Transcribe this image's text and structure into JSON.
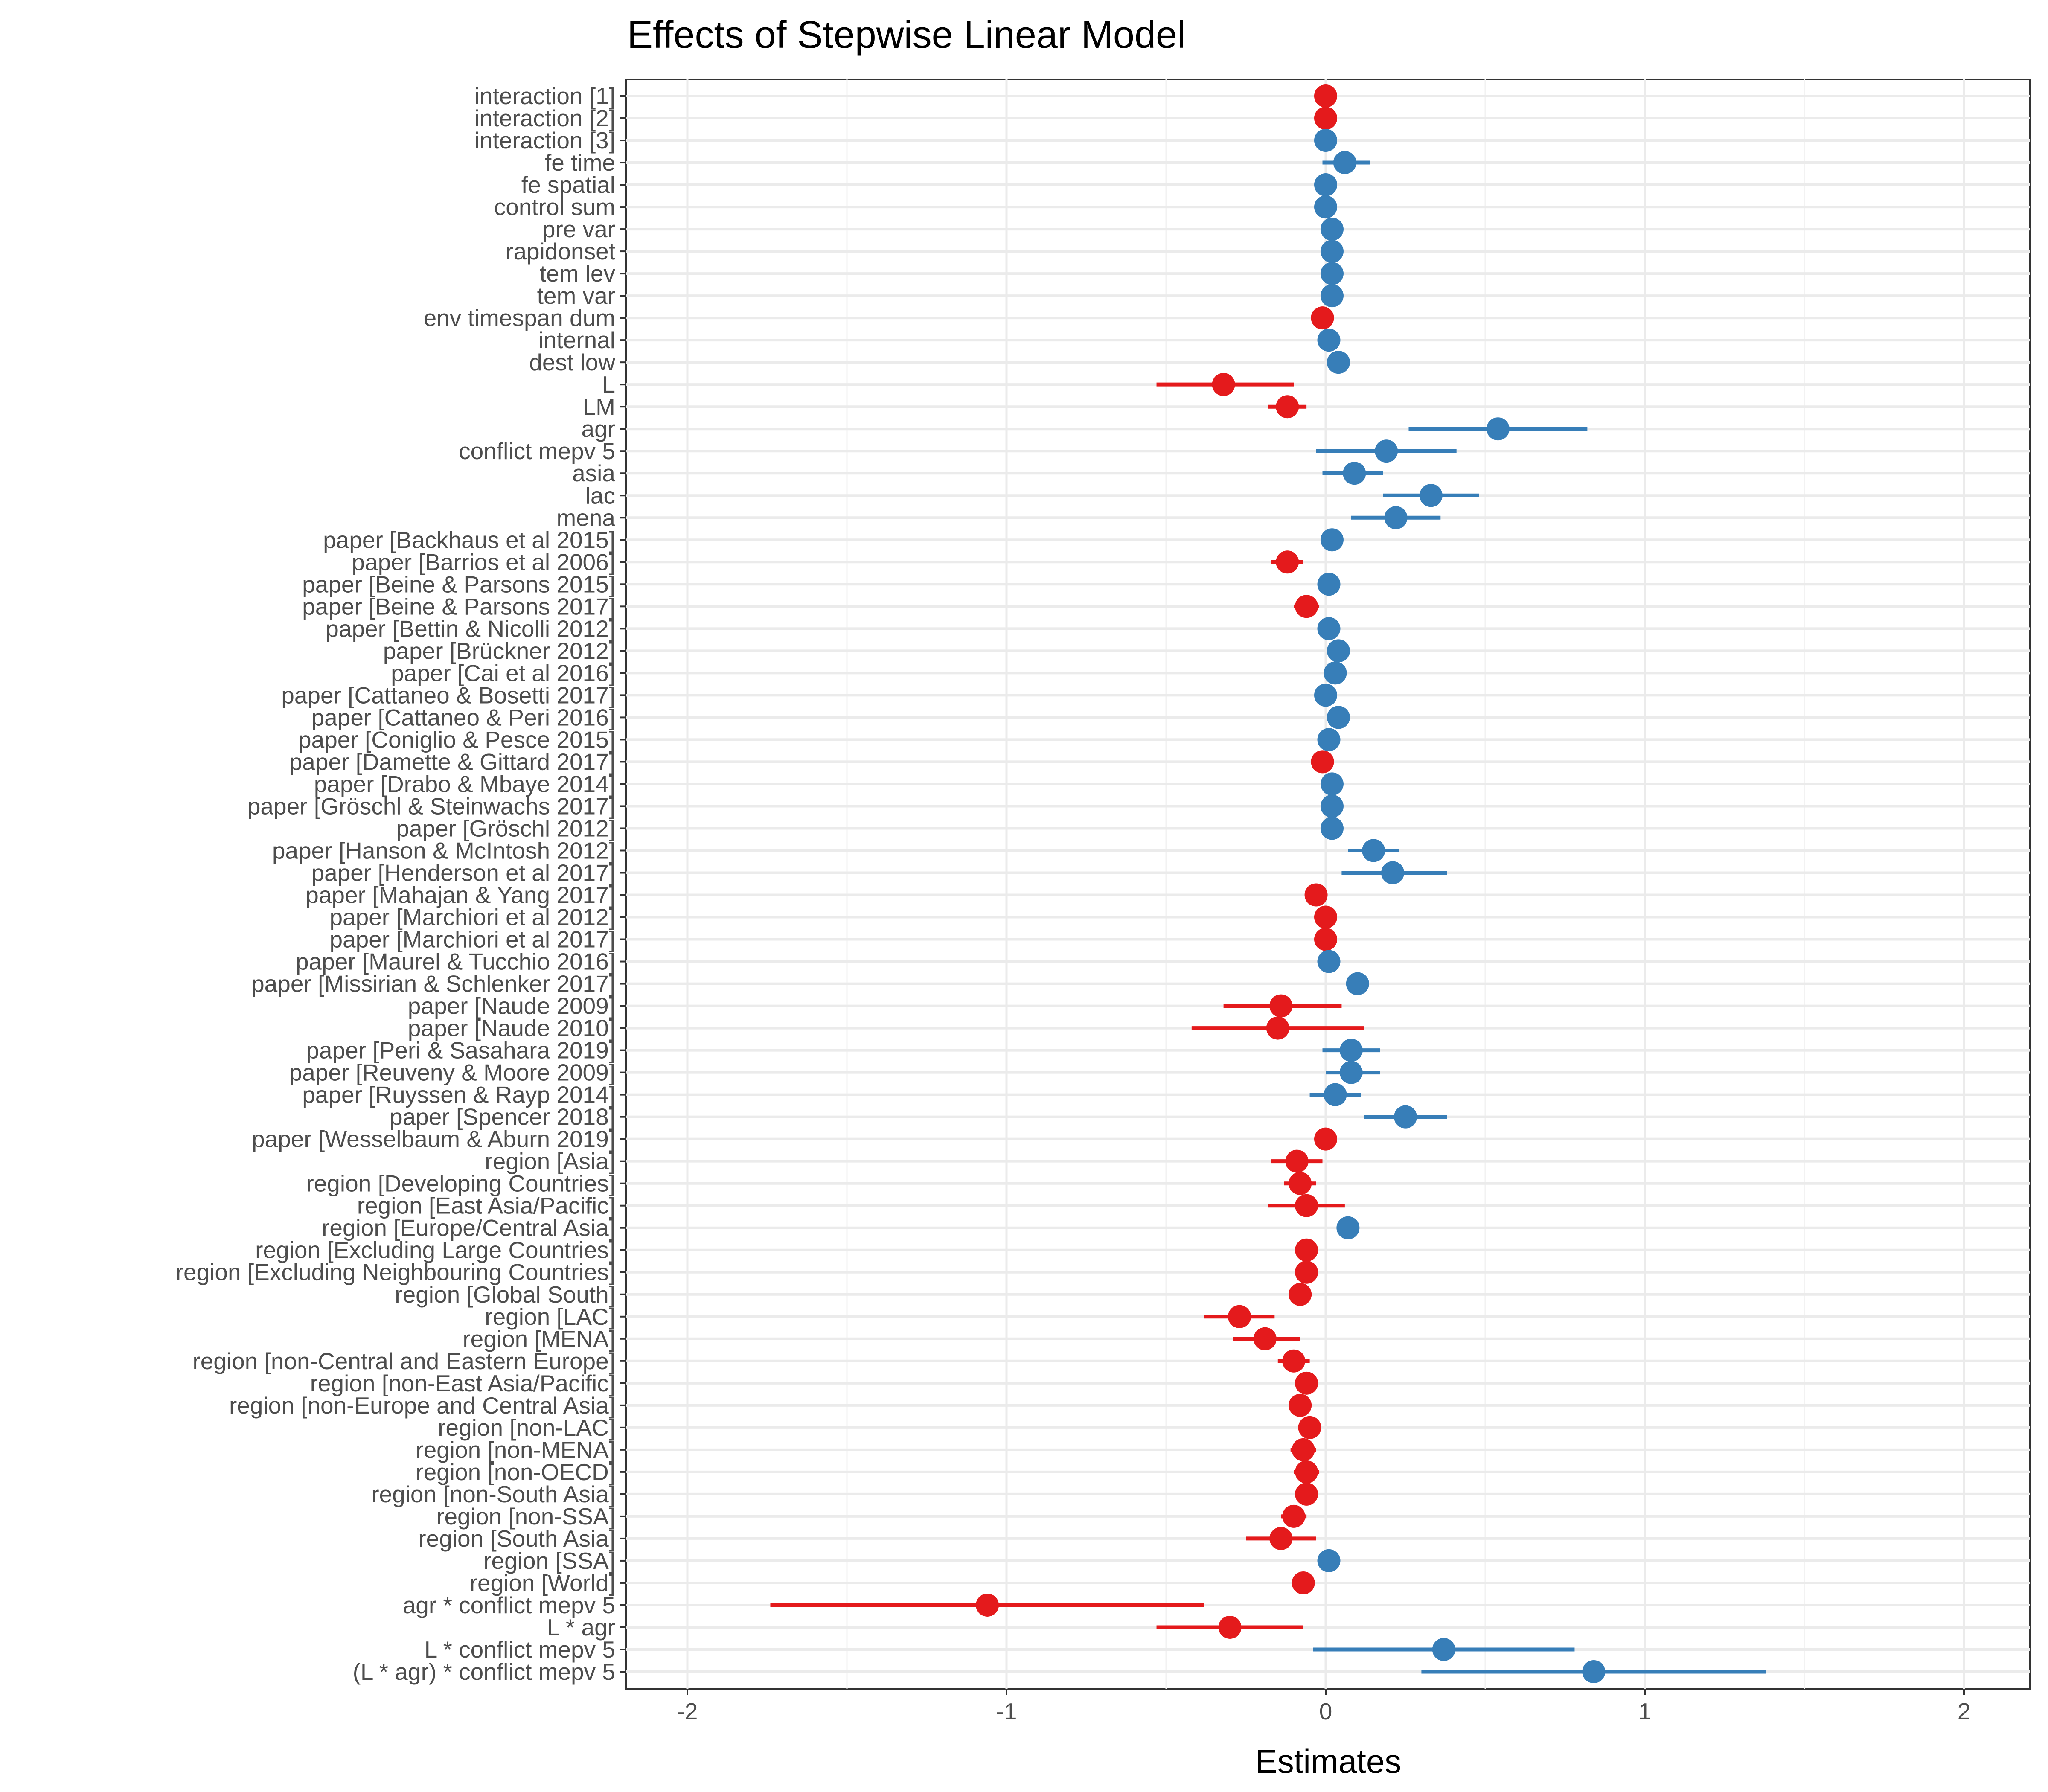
{
  "chart_data": {
    "type": "scatter",
    "subtype": "coefficient-plot",
    "title": "Effects of Stepwise Linear Model",
    "xlabel": "Estimates",
    "ylabel": "",
    "xlim": [
      -2.2,
      2.2
    ],
    "xticks": [
      -2,
      -1,
      0,
      1,
      2
    ],
    "xtick_labels": [
      "-2",
      "-1",
      "0",
      "1",
      "2"
    ],
    "grid": true,
    "legend": "none",
    "colors": {
      "positive": "#377eb8",
      "negative": "#e41a1c"
    },
    "terms": [
      {
        "label": "interaction [1]",
        "est": 0.0,
        "lo": 0.0,
        "hi": 0.0,
        "sign": "neg"
      },
      {
        "label": "interaction [2]",
        "est": 0.0,
        "lo": 0.0,
        "hi": 0.0,
        "sign": "neg"
      },
      {
        "label": "interaction [3]",
        "est": 0.0,
        "lo": 0.0,
        "hi": 0.0,
        "sign": "pos"
      },
      {
        "label": "fe time",
        "est": 0.06,
        "lo": -0.01,
        "hi": 0.14,
        "sign": "pos"
      },
      {
        "label": "fe spatial",
        "est": 0.0,
        "lo": 0.0,
        "hi": 0.0,
        "sign": "pos"
      },
      {
        "label": "control sum",
        "est": 0.0,
        "lo": 0.0,
        "hi": 0.0,
        "sign": "pos"
      },
      {
        "label": "pre var",
        "est": 0.02,
        "lo": 0.02,
        "hi": 0.02,
        "sign": "pos"
      },
      {
        "label": "rapidonset",
        "est": 0.02,
        "lo": 0.02,
        "hi": 0.02,
        "sign": "pos"
      },
      {
        "label": "tem lev",
        "est": 0.02,
        "lo": 0.02,
        "hi": 0.02,
        "sign": "pos"
      },
      {
        "label": "tem var",
        "est": 0.02,
        "lo": 0.02,
        "hi": 0.02,
        "sign": "pos"
      },
      {
        "label": "env timespan dum",
        "est": -0.01,
        "lo": -0.01,
        "hi": -0.01,
        "sign": "neg"
      },
      {
        "label": "internal",
        "est": 0.01,
        "lo": 0.01,
        "hi": 0.01,
        "sign": "pos"
      },
      {
        "label": "dest low",
        "est": 0.04,
        "lo": 0.04,
        "hi": 0.04,
        "sign": "pos"
      },
      {
        "label": "L",
        "est": -0.32,
        "lo": -0.53,
        "hi": -0.1,
        "sign": "neg"
      },
      {
        "label": "LM",
        "est": -0.12,
        "lo": -0.18,
        "hi": -0.06,
        "sign": "neg"
      },
      {
        "label": "agr",
        "est": 0.54,
        "lo": 0.26,
        "hi": 0.82,
        "sign": "pos"
      },
      {
        "label": "conflict mepv 5",
        "est": 0.19,
        "lo": -0.03,
        "hi": 0.41,
        "sign": "pos"
      },
      {
        "label": "asia",
        "est": 0.09,
        "lo": -0.01,
        "hi": 0.18,
        "sign": "pos"
      },
      {
        "label": "lac",
        "est": 0.33,
        "lo": 0.18,
        "hi": 0.48,
        "sign": "pos"
      },
      {
        "label": "mena",
        "est": 0.22,
        "lo": 0.08,
        "hi": 0.36,
        "sign": "pos"
      },
      {
        "label": "paper [Backhaus et al  2015]",
        "est": 0.02,
        "lo": 0.02,
        "hi": 0.02,
        "sign": "pos"
      },
      {
        "label": "paper [Barrios et al  2006]",
        "est": -0.12,
        "lo": -0.17,
        "hi": -0.07,
        "sign": "neg"
      },
      {
        "label": "paper [Beine & Parsons 2015]",
        "est": 0.01,
        "lo": 0.01,
        "hi": 0.01,
        "sign": "pos"
      },
      {
        "label": "paper [Beine & Parsons 2017]",
        "est": -0.06,
        "lo": -0.1,
        "hi": -0.02,
        "sign": "neg"
      },
      {
        "label": "paper [Bettin & Nicolli 2012]",
        "est": 0.01,
        "lo": 0.01,
        "hi": 0.01,
        "sign": "pos"
      },
      {
        "label": "paper [Brückner 2012]",
        "est": 0.04,
        "lo": 0.04,
        "hi": 0.04,
        "sign": "pos"
      },
      {
        "label": "paper [Cai et al  2016]",
        "est": 0.03,
        "lo": 0.03,
        "hi": 0.03,
        "sign": "pos"
      },
      {
        "label": "paper [Cattaneo & Bosetti 2017]",
        "est": 0.0,
        "lo": 0.0,
        "hi": 0.0,
        "sign": "pos"
      },
      {
        "label": "paper [Cattaneo & Peri 2016]",
        "est": 0.04,
        "lo": 0.04,
        "hi": 0.04,
        "sign": "pos"
      },
      {
        "label": "paper [Coniglio & Pesce 2015]",
        "est": 0.01,
        "lo": 0.01,
        "hi": 0.01,
        "sign": "pos"
      },
      {
        "label": "paper [Damette & Gittard 2017]",
        "est": -0.01,
        "lo": -0.01,
        "hi": -0.01,
        "sign": "neg"
      },
      {
        "label": "paper [Drabo & Mbaye 2014]",
        "est": 0.02,
        "lo": 0.02,
        "hi": 0.02,
        "sign": "pos"
      },
      {
        "label": "paper [Gröschl & Steinwachs 2017]",
        "est": 0.02,
        "lo": 0.02,
        "hi": 0.02,
        "sign": "pos"
      },
      {
        "label": "paper [Gröschl 2012]",
        "est": 0.02,
        "lo": 0.02,
        "hi": 0.02,
        "sign": "pos"
      },
      {
        "label": "paper [Hanson & McIntosh 2012]",
        "est": 0.15,
        "lo": 0.07,
        "hi": 0.23,
        "sign": "pos"
      },
      {
        "label": "paper [Henderson et al  2017]",
        "est": 0.21,
        "lo": 0.05,
        "hi": 0.38,
        "sign": "pos"
      },
      {
        "label": "paper [Mahajan & Yang 2017]",
        "est": -0.03,
        "lo": -0.03,
        "hi": -0.03,
        "sign": "neg"
      },
      {
        "label": "paper [Marchiori et al  2012]",
        "est": 0.0,
        "lo": 0.0,
        "hi": 0.0,
        "sign": "neg"
      },
      {
        "label": "paper [Marchiori et al  2017]",
        "est": 0.0,
        "lo": 0.0,
        "hi": 0.0,
        "sign": "neg"
      },
      {
        "label": "paper [Maurel & Tucchio 2016]",
        "est": 0.01,
        "lo": 0.01,
        "hi": 0.01,
        "sign": "pos"
      },
      {
        "label": "paper [Missirian & Schlenker 2017]",
        "est": 0.1,
        "lo": 0.1,
        "hi": 0.1,
        "sign": "pos"
      },
      {
        "label": "paper [Naude 2009]",
        "est": -0.14,
        "lo": -0.32,
        "hi": 0.05,
        "sign": "neg"
      },
      {
        "label": "paper [Naude 2010]",
        "est": -0.15,
        "lo": -0.42,
        "hi": 0.12,
        "sign": "neg"
      },
      {
        "label": "paper [Peri & Sasahara 2019]",
        "est": 0.08,
        "lo": -0.01,
        "hi": 0.17,
        "sign": "pos"
      },
      {
        "label": "paper [Reuveny & Moore 2009]",
        "est": 0.08,
        "lo": 0.0,
        "hi": 0.17,
        "sign": "pos"
      },
      {
        "label": "paper [Ruyssen & Rayp 2014]",
        "est": 0.03,
        "lo": -0.05,
        "hi": 0.11,
        "sign": "pos"
      },
      {
        "label": "paper [Spencer 2018]",
        "est": 0.25,
        "lo": 0.12,
        "hi": 0.38,
        "sign": "pos"
      },
      {
        "label": "paper [Wesselbaum & Aburn 2019]",
        "est": 0.0,
        "lo": 0.0,
        "hi": 0.0,
        "sign": "neg"
      },
      {
        "label": "region [Asia]",
        "est": -0.09,
        "lo": -0.17,
        "hi": -0.01,
        "sign": "neg"
      },
      {
        "label": "region [Developing Countries]",
        "est": -0.08,
        "lo": -0.13,
        "hi": -0.03,
        "sign": "neg"
      },
      {
        "label": "region [East Asia/Pacific]",
        "est": -0.06,
        "lo": -0.18,
        "hi": 0.06,
        "sign": "neg"
      },
      {
        "label": "region [Europe/Central Asia]",
        "est": 0.07,
        "lo": 0.04,
        "hi": 0.1,
        "sign": "pos"
      },
      {
        "label": "region [Excluding Large Countries]",
        "est": -0.06,
        "lo": -0.06,
        "hi": -0.06,
        "sign": "neg"
      },
      {
        "label": "region [Excluding Neighbouring Countries]",
        "est": -0.06,
        "lo": -0.06,
        "hi": -0.06,
        "sign": "neg"
      },
      {
        "label": "region [Global South]",
        "est": -0.08,
        "lo": -0.08,
        "hi": -0.08,
        "sign": "neg"
      },
      {
        "label": "region [LAC]",
        "est": -0.27,
        "lo": -0.38,
        "hi": -0.16,
        "sign": "neg"
      },
      {
        "label": "region [MENA]",
        "est": -0.19,
        "lo": -0.29,
        "hi": -0.08,
        "sign": "neg"
      },
      {
        "label": "region [non-Central and Eastern Europe]",
        "est": -0.1,
        "lo": -0.15,
        "hi": -0.05,
        "sign": "neg"
      },
      {
        "label": "region [non-East Asia/Pacific]",
        "est": -0.06,
        "lo": -0.06,
        "hi": -0.06,
        "sign": "neg"
      },
      {
        "label": "region [non-Europe and Central Asia]",
        "est": -0.08,
        "lo": -0.08,
        "hi": -0.08,
        "sign": "neg"
      },
      {
        "label": "region [non-LAC]",
        "est": -0.05,
        "lo": -0.05,
        "hi": -0.05,
        "sign": "neg"
      },
      {
        "label": "region [non-MENA]",
        "est": -0.07,
        "lo": -0.11,
        "hi": -0.03,
        "sign": "neg"
      },
      {
        "label": "region [non-OECD]",
        "est": -0.06,
        "lo": -0.1,
        "hi": -0.02,
        "sign": "neg"
      },
      {
        "label": "region [non-South Asia]",
        "est": -0.06,
        "lo": -0.06,
        "hi": -0.06,
        "sign": "neg"
      },
      {
        "label": "region [non-SSA]",
        "est": -0.1,
        "lo": -0.14,
        "hi": -0.06,
        "sign": "neg"
      },
      {
        "label": "region [South Asia]",
        "est": -0.14,
        "lo": -0.25,
        "hi": -0.03,
        "sign": "neg"
      },
      {
        "label": "region [SSA]",
        "est": 0.01,
        "lo": 0.01,
        "hi": 0.01,
        "sign": "pos"
      },
      {
        "label": "region [World]",
        "est": -0.07,
        "lo": -0.07,
        "hi": -0.07,
        "sign": "neg"
      },
      {
        "label": "agr * conflict mepv 5",
        "est": -1.06,
        "lo": -1.74,
        "hi": -0.38,
        "sign": "neg"
      },
      {
        "label": "L * agr",
        "est": -0.3,
        "lo": -0.53,
        "hi": -0.07,
        "sign": "neg"
      },
      {
        "label": "L * conflict mepv 5",
        "est": 0.37,
        "lo": -0.04,
        "hi": 0.78,
        "sign": "pos"
      },
      {
        "label": "(L * agr) * conflict mepv 5",
        "est": 0.84,
        "lo": 0.3,
        "hi": 1.38,
        "sign": "pos"
      }
    ]
  }
}
